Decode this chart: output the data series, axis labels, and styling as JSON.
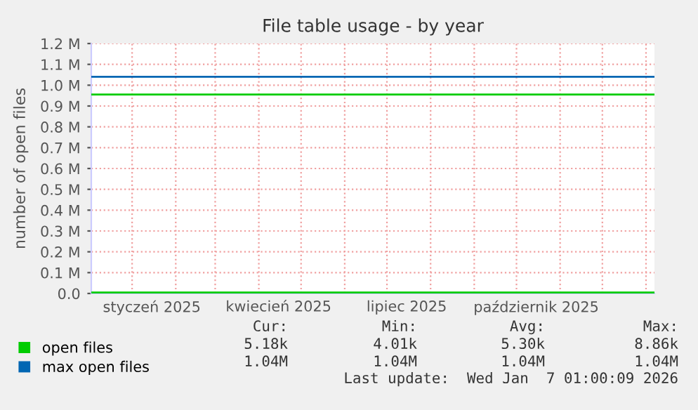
{
  "chart_data": {
    "type": "line",
    "title": "File table usage - by year",
    "ylabel": "number of open files",
    "x": [
      "2024-12-03",
      "2025-06-01",
      "2026-01-07"
    ],
    "series": [
      {
        "name": "open files",
        "color": "#00cc00",
        "values": [
          5000,
          5000,
          5000
        ]
      },
      {
        "name": "max open files",
        "color": "#0066b3",
        "values": [
          1040000,
          1040000,
          1040000
        ]
      }
    ],
    "ref_lines": [
      {
        "axis": "y",
        "value": 955000,
        "color": "#00cc00"
      }
    ],
    "xlim": [
      "2024-12-03",
      "2026-01-07"
    ],
    "xticks": [
      {
        "value": "2025-01-15",
        "label": "styczeń 2025"
      },
      {
        "value": "2025-04-15",
        "label": "kwiecień 2025"
      },
      {
        "value": "2025-07-15",
        "label": "lipiec 2025"
      },
      {
        "value": "2025-10-15",
        "label": "październik 2025"
      }
    ],
    "ylim": [
      0,
      1200000
    ],
    "yticks": [
      {
        "value": 0,
        "label": "0.0"
      },
      {
        "value": 100000,
        "label": "0.1 M"
      },
      {
        "value": 200000,
        "label": "0.2 M"
      },
      {
        "value": 300000,
        "label": "0.3 M"
      },
      {
        "value": 400000,
        "label": "0.4 M"
      },
      {
        "value": 500000,
        "label": "0.5 M"
      },
      {
        "value": 600000,
        "label": "0.6 M"
      },
      {
        "value": 700000,
        "label": "0.7 M"
      },
      {
        "value": 800000,
        "label": "0.8 M"
      },
      {
        "value": 900000,
        "label": "0.9 M"
      },
      {
        "value": 1000000,
        "label": "1.0 M"
      },
      {
        "value": 1100000,
        "label": "1.1 M"
      },
      {
        "value": 1200000,
        "label": "1.2 M"
      }
    ],
    "grid": true,
    "legend": "bottom left",
    "marker": "none",
    "line_style": "solid",
    "annotations": [
      "Cur:",
      "Min:",
      "Avg:",
      "Max:",
      "5.18k",
      "4.01k",
      "5.30k",
      "8.86k",
      "1.04M",
      "1.04M",
      "1.04M",
      "1.04M",
      "Last update:  Wed Jan  7 01:00:09 2026"
    ]
  }
}
